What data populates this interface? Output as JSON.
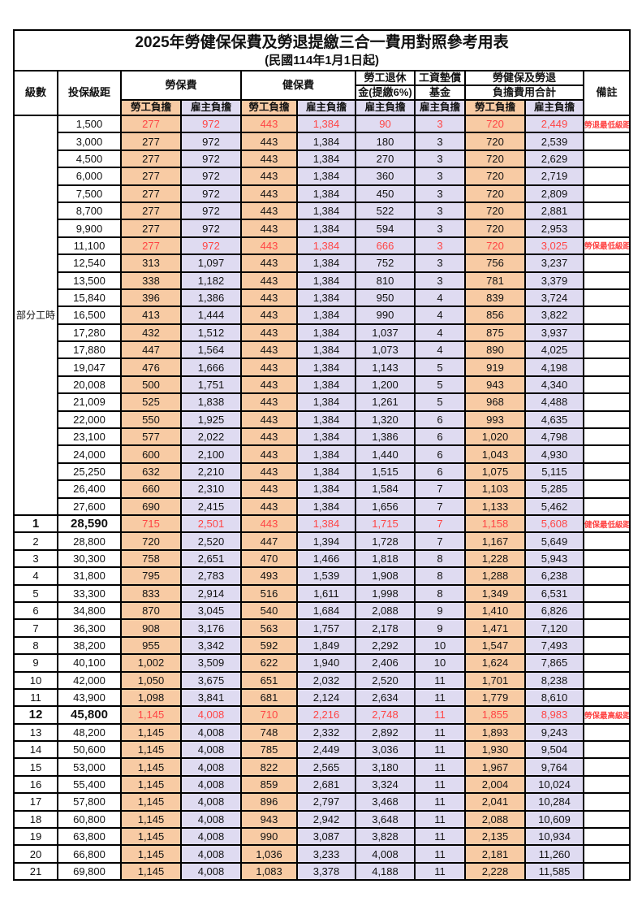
{
  "title": "2025年勞健保保費及勞退提繳三合一費用對照參考用表",
  "subtitle": "(民國114年1月1日起)",
  "header": {
    "level": "級數",
    "bracket": "投保級距",
    "labor": "勞保費",
    "health": "健保費",
    "pension_line1": "勞工退休",
    "pension_line2": "金(提繳6%)",
    "fund_line1": "工資墊償",
    "fund_line2": "基金",
    "total_line1": "勞健保及勞退",
    "total_line2": "負擔費用合計",
    "note": "備註",
    "employee": "勞工負擔",
    "employer": "雇主負擔"
  },
  "part_time_label": "部分工時",
  "colors": {
    "employee_bg": "#F8CBA4",
    "employer_bg": "#DFDBF1",
    "highlight_red": "#FF4545",
    "border": "#000000"
  },
  "rows": [
    {
      "level": "",
      "bracket": "1,500",
      "labor_e": "277",
      "labor_r": "972",
      "health_e": "443",
      "health_r": "1,384",
      "pension_r": "90",
      "fund_r": "3",
      "sum_e": "720",
      "sum_r": "2,449",
      "note": "勞退最低級距",
      "red": true,
      "emph": false
    },
    {
      "level": "",
      "bracket": "3,000",
      "labor_e": "277",
      "labor_r": "972",
      "health_e": "443",
      "health_r": "1,384",
      "pension_r": "180",
      "fund_r": "3",
      "sum_e": "720",
      "sum_r": "2,539",
      "note": "",
      "red": false,
      "emph": false
    },
    {
      "level": "",
      "bracket": "4,500",
      "labor_e": "277",
      "labor_r": "972",
      "health_e": "443",
      "health_r": "1,384",
      "pension_r": "270",
      "fund_r": "3",
      "sum_e": "720",
      "sum_r": "2,629",
      "note": "",
      "red": false,
      "emph": false
    },
    {
      "level": "",
      "bracket": "6,000",
      "labor_e": "277",
      "labor_r": "972",
      "health_e": "443",
      "health_r": "1,384",
      "pension_r": "360",
      "fund_r": "3",
      "sum_e": "720",
      "sum_r": "2,719",
      "note": "",
      "red": false,
      "emph": false
    },
    {
      "level": "",
      "bracket": "7,500",
      "labor_e": "277",
      "labor_r": "972",
      "health_e": "443",
      "health_r": "1,384",
      "pension_r": "450",
      "fund_r": "3",
      "sum_e": "720",
      "sum_r": "2,809",
      "note": "",
      "red": false,
      "emph": false
    },
    {
      "level": "",
      "bracket": "8,700",
      "labor_e": "277",
      "labor_r": "972",
      "health_e": "443",
      "health_r": "1,384",
      "pension_r": "522",
      "fund_r": "3",
      "sum_e": "720",
      "sum_r": "2,881",
      "note": "",
      "red": false,
      "emph": false
    },
    {
      "level": "",
      "bracket": "9,900",
      "labor_e": "277",
      "labor_r": "972",
      "health_e": "443",
      "health_r": "1,384",
      "pension_r": "594",
      "fund_r": "3",
      "sum_e": "720",
      "sum_r": "2,953",
      "note": "",
      "red": false,
      "emph": false
    },
    {
      "level": "",
      "bracket": "11,100",
      "labor_e": "277",
      "labor_r": "972",
      "health_e": "443",
      "health_r": "1,384",
      "pension_r": "666",
      "fund_r": "3",
      "sum_e": "720",
      "sum_r": "3,025",
      "note": "勞保最低級距",
      "red": true,
      "emph": false
    },
    {
      "level": "",
      "bracket": "12,540",
      "labor_e": "313",
      "labor_r": "1,097",
      "health_e": "443",
      "health_r": "1,384",
      "pension_r": "752",
      "fund_r": "3",
      "sum_e": "756",
      "sum_r": "3,237",
      "note": "",
      "red": false,
      "emph": false
    },
    {
      "level": "",
      "bracket": "13,500",
      "labor_e": "338",
      "labor_r": "1,182",
      "health_e": "443",
      "health_r": "1,384",
      "pension_r": "810",
      "fund_r": "3",
      "sum_e": "781",
      "sum_r": "3,379",
      "note": "",
      "red": false,
      "emph": false
    },
    {
      "level": "",
      "bracket": "15,840",
      "labor_e": "396",
      "labor_r": "1,386",
      "health_e": "443",
      "health_r": "1,384",
      "pension_r": "950",
      "fund_r": "4",
      "sum_e": "839",
      "sum_r": "3,724",
      "note": "",
      "red": false,
      "emph": false
    },
    {
      "level": "",
      "bracket": "16,500",
      "labor_e": "413",
      "labor_r": "1,444",
      "health_e": "443",
      "health_r": "1,384",
      "pension_r": "990",
      "fund_r": "4",
      "sum_e": "856",
      "sum_r": "3,822",
      "note": "",
      "red": false,
      "emph": false
    },
    {
      "level": "",
      "bracket": "17,280",
      "labor_e": "432",
      "labor_r": "1,512",
      "health_e": "443",
      "health_r": "1,384",
      "pension_r": "1,037",
      "fund_r": "4",
      "sum_e": "875",
      "sum_r": "3,937",
      "note": "",
      "red": false,
      "emph": false
    },
    {
      "level": "",
      "bracket": "17,880",
      "labor_e": "447",
      "labor_r": "1,564",
      "health_e": "443",
      "health_r": "1,384",
      "pension_r": "1,073",
      "fund_r": "4",
      "sum_e": "890",
      "sum_r": "4,025",
      "note": "",
      "red": false,
      "emph": false
    },
    {
      "level": "",
      "bracket": "19,047",
      "labor_e": "476",
      "labor_r": "1,666",
      "health_e": "443",
      "health_r": "1,384",
      "pension_r": "1,143",
      "fund_r": "5",
      "sum_e": "919",
      "sum_r": "4,198",
      "note": "",
      "red": false,
      "emph": false
    },
    {
      "level": "",
      "bracket": "20,008",
      "labor_e": "500",
      "labor_r": "1,751",
      "health_e": "443",
      "health_r": "1,384",
      "pension_r": "1,200",
      "fund_r": "5",
      "sum_e": "943",
      "sum_r": "4,340",
      "note": "",
      "red": false,
      "emph": false
    },
    {
      "level": "",
      "bracket": "21,009",
      "labor_e": "525",
      "labor_r": "1,838",
      "health_e": "443",
      "health_r": "1,384",
      "pension_r": "1,261",
      "fund_r": "5",
      "sum_e": "968",
      "sum_r": "4,488",
      "note": "",
      "red": false,
      "emph": false
    },
    {
      "level": "",
      "bracket": "22,000",
      "labor_e": "550",
      "labor_r": "1,925",
      "health_e": "443",
      "health_r": "1,384",
      "pension_r": "1,320",
      "fund_r": "6",
      "sum_e": "993",
      "sum_r": "4,635",
      "note": "",
      "red": false,
      "emph": false
    },
    {
      "level": "",
      "bracket": "23,100",
      "labor_e": "577",
      "labor_r": "2,022",
      "health_e": "443",
      "health_r": "1,384",
      "pension_r": "1,386",
      "fund_r": "6",
      "sum_e": "1,020",
      "sum_r": "4,798",
      "note": "",
      "red": false,
      "emph": false
    },
    {
      "level": "",
      "bracket": "24,000",
      "labor_e": "600",
      "labor_r": "2,100",
      "health_e": "443",
      "health_r": "1,384",
      "pension_r": "1,440",
      "fund_r": "6",
      "sum_e": "1,043",
      "sum_r": "4,930",
      "note": "",
      "red": false,
      "emph": false
    },
    {
      "level": "",
      "bracket": "25,250",
      "labor_e": "632",
      "labor_r": "2,210",
      "health_e": "443",
      "health_r": "1,384",
      "pension_r": "1,515",
      "fund_r": "6",
      "sum_e": "1,075",
      "sum_r": "5,115",
      "note": "",
      "red": false,
      "emph": false
    },
    {
      "level": "",
      "bracket": "26,400",
      "labor_e": "660",
      "labor_r": "2,310",
      "health_e": "443",
      "health_r": "1,384",
      "pension_r": "1,584",
      "fund_r": "7",
      "sum_e": "1,103",
      "sum_r": "5,285",
      "note": "",
      "red": false,
      "emph": false
    },
    {
      "level": "",
      "bracket": "27,600",
      "labor_e": "690",
      "labor_r": "2,415",
      "health_e": "443",
      "health_r": "1,384",
      "pension_r": "1,656",
      "fund_r": "7",
      "sum_e": "1,133",
      "sum_r": "5,462",
      "note": "",
      "red": false,
      "emph": false
    },
    {
      "level": "1",
      "bracket": "28,590",
      "labor_e": "715",
      "labor_r": "2,501",
      "health_e": "443",
      "health_r": "1,384",
      "pension_r": "1,715",
      "fund_r": "7",
      "sum_e": "1,158",
      "sum_r": "5,608",
      "note": "健保最低級距",
      "red": true,
      "emph": true
    },
    {
      "level": "2",
      "bracket": "28,800",
      "labor_e": "720",
      "labor_r": "2,520",
      "health_e": "447",
      "health_r": "1,394",
      "pension_r": "1,728",
      "fund_r": "7",
      "sum_e": "1,167",
      "sum_r": "5,649",
      "note": "",
      "red": false,
      "emph": false
    },
    {
      "level": "3",
      "bracket": "30,300",
      "labor_e": "758",
      "labor_r": "2,651",
      "health_e": "470",
      "health_r": "1,466",
      "pension_r": "1,818",
      "fund_r": "8",
      "sum_e": "1,228",
      "sum_r": "5,943",
      "note": "",
      "red": false,
      "emph": false
    },
    {
      "level": "4",
      "bracket": "31,800",
      "labor_e": "795",
      "labor_r": "2,783",
      "health_e": "493",
      "health_r": "1,539",
      "pension_r": "1,908",
      "fund_r": "8",
      "sum_e": "1,288",
      "sum_r": "6,238",
      "note": "",
      "red": false,
      "emph": false
    },
    {
      "level": "5",
      "bracket": "33,300",
      "labor_e": "833",
      "labor_r": "2,914",
      "health_e": "516",
      "health_r": "1,611",
      "pension_r": "1,998",
      "fund_r": "8",
      "sum_e": "1,349",
      "sum_r": "6,531",
      "note": "",
      "red": false,
      "emph": false
    },
    {
      "level": "6",
      "bracket": "34,800",
      "labor_e": "870",
      "labor_r": "3,045",
      "health_e": "540",
      "health_r": "1,684",
      "pension_r": "2,088",
      "fund_r": "9",
      "sum_e": "1,410",
      "sum_r": "6,826",
      "note": "",
      "red": false,
      "emph": false
    },
    {
      "level": "7",
      "bracket": "36,300",
      "labor_e": "908",
      "labor_r": "3,176",
      "health_e": "563",
      "health_r": "1,757",
      "pension_r": "2,178",
      "fund_r": "9",
      "sum_e": "1,471",
      "sum_r": "7,120",
      "note": "",
      "red": false,
      "emph": false
    },
    {
      "level": "8",
      "bracket": "38,200",
      "labor_e": "955",
      "labor_r": "3,342",
      "health_e": "592",
      "health_r": "1,849",
      "pension_r": "2,292",
      "fund_r": "10",
      "sum_e": "1,547",
      "sum_r": "7,493",
      "note": "",
      "red": false,
      "emph": false
    },
    {
      "level": "9",
      "bracket": "40,100",
      "labor_e": "1,002",
      "labor_r": "3,509",
      "health_e": "622",
      "health_r": "1,940",
      "pension_r": "2,406",
      "fund_r": "10",
      "sum_e": "1,624",
      "sum_r": "7,865",
      "note": "",
      "red": false,
      "emph": false
    },
    {
      "level": "10",
      "bracket": "42,000",
      "labor_e": "1,050",
      "labor_r": "3,675",
      "health_e": "651",
      "health_r": "2,032",
      "pension_r": "2,520",
      "fund_r": "11",
      "sum_e": "1,701",
      "sum_r": "8,238",
      "note": "",
      "red": false,
      "emph": false
    },
    {
      "level": "11",
      "bracket": "43,900",
      "labor_e": "1,098",
      "labor_r": "3,841",
      "health_e": "681",
      "health_r": "2,124",
      "pension_r": "2,634",
      "fund_r": "11",
      "sum_e": "1,779",
      "sum_r": "8,610",
      "note": "",
      "red": false,
      "emph": false
    },
    {
      "level": "12",
      "bracket": "45,800",
      "labor_e": "1,145",
      "labor_r": "4,008",
      "health_e": "710",
      "health_r": "2,216",
      "pension_r": "2,748",
      "fund_r": "11",
      "sum_e": "1,855",
      "sum_r": "8,983",
      "note": "勞保最高級距",
      "red": true,
      "emph": true
    },
    {
      "level": "13",
      "bracket": "48,200",
      "labor_e": "1,145",
      "labor_r": "4,008",
      "health_e": "748",
      "health_r": "2,332",
      "pension_r": "2,892",
      "fund_r": "11",
      "sum_e": "1,893",
      "sum_r": "9,243",
      "note": "",
      "red": false,
      "emph": false
    },
    {
      "level": "14",
      "bracket": "50,600",
      "labor_e": "1,145",
      "labor_r": "4,008",
      "health_e": "785",
      "health_r": "2,449",
      "pension_r": "3,036",
      "fund_r": "11",
      "sum_e": "1,930",
      "sum_r": "9,504",
      "note": "",
      "red": false,
      "emph": false
    },
    {
      "level": "15",
      "bracket": "53,000",
      "labor_e": "1,145",
      "labor_r": "4,008",
      "health_e": "822",
      "health_r": "2,565",
      "pension_r": "3,180",
      "fund_r": "11",
      "sum_e": "1,967",
      "sum_r": "9,764",
      "note": "",
      "red": false,
      "emph": false
    },
    {
      "level": "16",
      "bracket": "55,400",
      "labor_e": "1,145",
      "labor_r": "4,008",
      "health_e": "859",
      "health_r": "2,681",
      "pension_r": "3,324",
      "fund_r": "11",
      "sum_e": "2,004",
      "sum_r": "10,024",
      "note": "",
      "red": false,
      "emph": false
    },
    {
      "level": "17",
      "bracket": "57,800",
      "labor_e": "1,145",
      "labor_r": "4,008",
      "health_e": "896",
      "health_r": "2,797",
      "pension_r": "3,468",
      "fund_r": "11",
      "sum_e": "2,041",
      "sum_r": "10,284",
      "note": "",
      "red": false,
      "emph": false
    },
    {
      "level": "18",
      "bracket": "60,800",
      "labor_e": "1,145",
      "labor_r": "4,008",
      "health_e": "943",
      "health_r": "2,942",
      "pension_r": "3,648",
      "fund_r": "11",
      "sum_e": "2,088",
      "sum_r": "10,609",
      "note": "",
      "red": false,
      "emph": false
    },
    {
      "level": "19",
      "bracket": "63,800",
      "labor_e": "1,145",
      "labor_r": "4,008",
      "health_e": "990",
      "health_r": "3,087",
      "pension_r": "3,828",
      "fund_r": "11",
      "sum_e": "2,135",
      "sum_r": "10,934",
      "note": "",
      "red": false,
      "emph": false
    },
    {
      "level": "20",
      "bracket": "66,800",
      "labor_e": "1,145",
      "labor_r": "4,008",
      "health_e": "1,036",
      "health_r": "3,233",
      "pension_r": "4,008",
      "fund_r": "11",
      "sum_e": "2,181",
      "sum_r": "11,260",
      "note": "",
      "red": false,
      "emph": false
    },
    {
      "level": "21",
      "bracket": "69,800",
      "labor_e": "1,145",
      "labor_r": "4,008",
      "health_e": "1,083",
      "health_r": "3,378",
      "pension_r": "4,188",
      "fund_r": "11",
      "sum_e": "2,228",
      "sum_r": "11,585",
      "note": "",
      "red": false,
      "emph": false
    }
  ]
}
